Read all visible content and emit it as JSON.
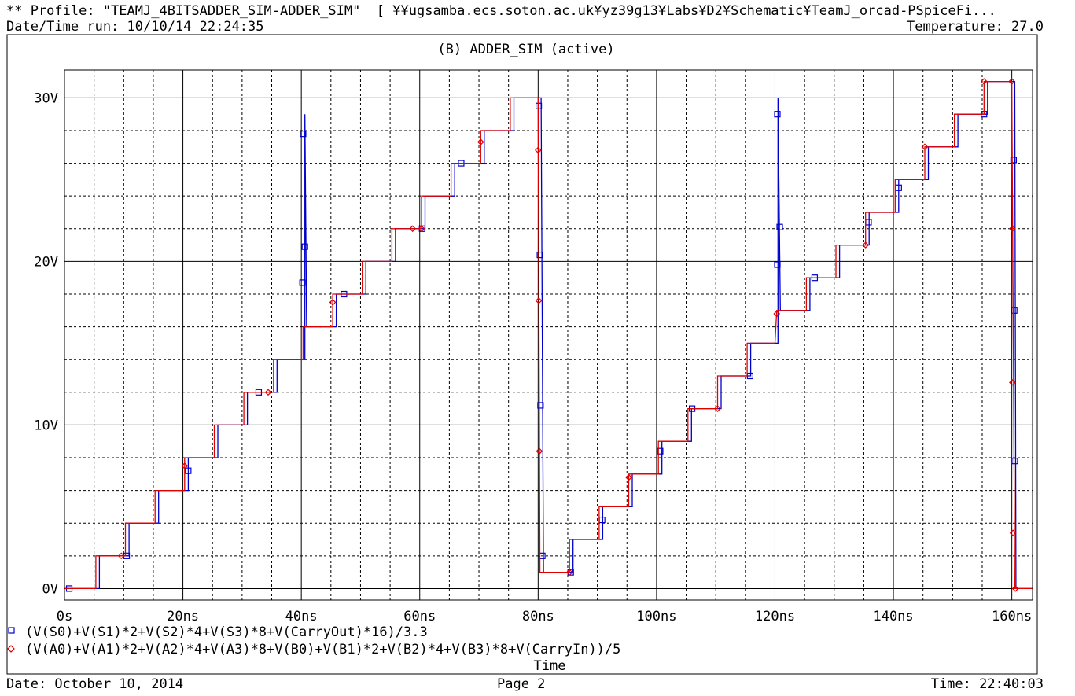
{
  "header": {
    "profile": "** Profile: \"TEAMJ_4BITSADDER_SIM-ADDER_SIM\"  [ ¥¥ugsamba.ecs.soton.ac.uk¥yz39g13¥Labs¥D2¥Schematic¥TeamJ_orcad-PSpiceFi...",
    "datetime_run": "Date/Time run: 10/10/14 22:24:35",
    "temperature": "Temperature: 27.0"
  },
  "footer": {
    "date": "Date: October 10, 2014",
    "page": "Page 2",
    "time": "Time: 22:40:03"
  },
  "chart_data": {
    "type": "line",
    "title": "(B) ADDER_SIM (active)",
    "xlabel": "Time",
    "ylabel": "",
    "xlim": [
      0,
      163.5
    ],
    "ylim": [
      -0.7,
      31.7
    ],
    "grid": true,
    "x_ticks": [
      0,
      20,
      40,
      60,
      80,
      100,
      120,
      140,
      160
    ],
    "x_tick_labels": [
      "0s",
      "20ns",
      "40ns",
      "60ns",
      "80ns",
      "100ns",
      "120ns",
      "140ns",
      "160ns"
    ],
    "y_ticks": [
      0,
      10,
      20,
      30
    ],
    "y_tick_labels": [
      "0V",
      "10V",
      "20V",
      "30V"
    ],
    "series": [
      {
        "name": "(V(S0)+V(S1)*2+V(S2)*4+V(S3)*8+V(CarryOut)*16)/3.3",
        "color": "#0000cc",
        "marker": "square",
        "points": [
          [
            0,
            0
          ],
          [
            5.9,
            0
          ],
          [
            5.9,
            2
          ],
          [
            10.9,
            2
          ],
          [
            10.9,
            4
          ],
          [
            15.9,
            4
          ],
          [
            15.9,
            6
          ],
          [
            20.9,
            6
          ],
          [
            20.9,
            8
          ],
          [
            25.9,
            8
          ],
          [
            25.9,
            10
          ],
          [
            30.9,
            10
          ],
          [
            30.9,
            12
          ],
          [
            35.9,
            12
          ],
          [
            35.9,
            14
          ],
          [
            40.6,
            14
          ],
          [
            40.6,
            29
          ],
          [
            40.9,
            16
          ],
          [
            45.9,
            16
          ],
          [
            45.9,
            18
          ],
          [
            50.9,
            18
          ],
          [
            50.9,
            20
          ],
          [
            55.9,
            20
          ],
          [
            55.9,
            22
          ],
          [
            60.9,
            22
          ],
          [
            60.9,
            24
          ],
          [
            65.9,
            24
          ],
          [
            65.9,
            26
          ],
          [
            70.9,
            26
          ],
          [
            70.9,
            28
          ],
          [
            75.9,
            28
          ],
          [
            75.9,
            30
          ],
          [
            80.5,
            30
          ],
          [
            80.9,
            1
          ],
          [
            85.9,
            1
          ],
          [
            85.9,
            3
          ],
          [
            90.9,
            3
          ],
          [
            90.9,
            5
          ],
          [
            95.9,
            5
          ],
          [
            95.9,
            7
          ],
          [
            100.9,
            7
          ],
          [
            100.9,
            9
          ],
          [
            105.9,
            9
          ],
          [
            105.9,
            11
          ],
          [
            110.9,
            11
          ],
          [
            110.9,
            13
          ],
          [
            115.9,
            13
          ],
          [
            115.9,
            15
          ],
          [
            120.5,
            15
          ],
          [
            120.5,
            30
          ],
          [
            120.9,
            17
          ],
          [
            125.9,
            17
          ],
          [
            125.9,
            19
          ],
          [
            130.9,
            19
          ],
          [
            130.9,
            21
          ],
          [
            135.9,
            21
          ],
          [
            135.9,
            23
          ],
          [
            140.9,
            23
          ],
          [
            140.9,
            25
          ],
          [
            145.9,
            25
          ],
          [
            145.9,
            27
          ],
          [
            150.9,
            27
          ],
          [
            150.9,
            29
          ],
          [
            155.9,
            29
          ],
          [
            155.9,
            31
          ],
          [
            160.5,
            31
          ],
          [
            160.7,
            0
          ],
          [
            163.5,
            0
          ]
        ],
        "markers": [
          [
            0.8,
            0
          ],
          [
            10.5,
            2
          ],
          [
            20.9,
            7.2
          ],
          [
            32.8,
            12
          ],
          [
            40.3,
            27.8
          ],
          [
            40.6,
            20.9
          ],
          [
            40.2,
            18.7
          ],
          [
            47.2,
            18
          ],
          [
            60.4,
            22
          ],
          [
            67.0,
            26
          ],
          [
            80.1,
            29.5
          ],
          [
            80.3,
            20.4
          ],
          [
            80.4,
            11.2
          ],
          [
            80.7,
            2
          ],
          [
            85.5,
            1
          ],
          [
            90.8,
            4.2
          ],
          [
            100.6,
            8.4
          ],
          [
            106.0,
            11
          ],
          [
            115.8,
            13
          ],
          [
            120.4,
            29
          ],
          [
            120.4,
            19.8
          ],
          [
            120.8,
            22.1
          ],
          [
            126.7,
            19
          ],
          [
            135.8,
            22.4
          ],
          [
            140.9,
            24.5
          ],
          [
            155.3,
            29
          ],
          [
            160.3,
            26.2
          ],
          [
            160.4,
            17
          ],
          [
            160.5,
            7.8
          ]
        ]
      },
      {
        "name": "(V(A0)+V(A1)*2+V(A2)*4+V(A3)*8+V(B0)+V(B1)*2+V(B2)*4+V(B3)*8+V(CarryIn))/5",
        "color": "#e00000",
        "marker": "diamond",
        "points": [
          [
            0,
            0
          ],
          [
            5.3,
            0
          ],
          [
            5.3,
            2
          ],
          [
            10.3,
            2
          ],
          [
            10.3,
            4
          ],
          [
            15.3,
            4
          ],
          [
            15.3,
            6
          ],
          [
            20.3,
            6
          ],
          [
            20.3,
            8
          ],
          [
            25.3,
            8
          ],
          [
            25.3,
            10
          ],
          [
            30.3,
            10
          ],
          [
            30.3,
            12
          ],
          [
            35.3,
            12
          ],
          [
            35.3,
            14
          ],
          [
            40.3,
            14
          ],
          [
            40.3,
            16
          ],
          [
            45.3,
            16
          ],
          [
            45.3,
            18
          ],
          [
            50.3,
            18
          ],
          [
            50.3,
            20
          ],
          [
            55.3,
            20
          ],
          [
            55.3,
            22
          ],
          [
            60.3,
            22
          ],
          [
            60.3,
            24
          ],
          [
            65.3,
            24
          ],
          [
            65.3,
            26
          ],
          [
            70.3,
            26
          ],
          [
            70.3,
            28
          ],
          [
            75.3,
            28
          ],
          [
            75.3,
            30
          ],
          [
            80.0,
            30
          ],
          [
            80.3,
            1
          ],
          [
            85.3,
            1
          ],
          [
            85.3,
            3
          ],
          [
            90.3,
            3
          ],
          [
            90.3,
            5
          ],
          [
            95.3,
            5
          ],
          [
            95.3,
            7
          ],
          [
            100.3,
            7
          ],
          [
            100.3,
            9
          ],
          [
            105.3,
            9
          ],
          [
            105.3,
            11
          ],
          [
            110.3,
            11
          ],
          [
            110.3,
            13
          ],
          [
            115.3,
            13
          ],
          [
            115.3,
            15
          ],
          [
            120.0,
            15
          ],
          [
            120.3,
            17
          ],
          [
            125.3,
            17
          ],
          [
            125.3,
            19
          ],
          [
            130.3,
            19
          ],
          [
            130.3,
            21
          ],
          [
            135.3,
            21
          ],
          [
            135.3,
            23
          ],
          [
            140.3,
            23
          ],
          [
            140.3,
            25
          ],
          [
            145.3,
            25
          ],
          [
            145.3,
            27
          ],
          [
            150.3,
            27
          ],
          [
            150.3,
            29
          ],
          [
            155.3,
            29
          ],
          [
            155.3,
            31
          ],
          [
            160.0,
            31
          ],
          [
            160.5,
            0
          ],
          [
            163.5,
            0
          ]
        ],
        "markers": [
          [
            9.6,
            2
          ],
          [
            20.3,
            7.5
          ],
          [
            34.4,
            12
          ],
          [
            45.3,
            17.5
          ],
          [
            58.8,
            22
          ],
          [
            60.3,
            22
          ],
          [
            70.3,
            27.3
          ],
          [
            80.0,
            26.8
          ],
          [
            80.1,
            17.6
          ],
          [
            80.2,
            8.4
          ],
          [
            85.3,
            1
          ],
          [
            95.3,
            6.8
          ],
          [
            110.3,
            11
          ],
          [
            120.3,
            16.8
          ],
          [
            135.3,
            21
          ],
          [
            145.3,
            27
          ],
          [
            155.3,
            31
          ],
          [
            160.0,
            31
          ],
          [
            160.1,
            22
          ],
          [
            160.1,
            12.6
          ],
          [
            160.2,
            3.4
          ],
          [
            160.6,
            0
          ]
        ]
      }
    ]
  }
}
